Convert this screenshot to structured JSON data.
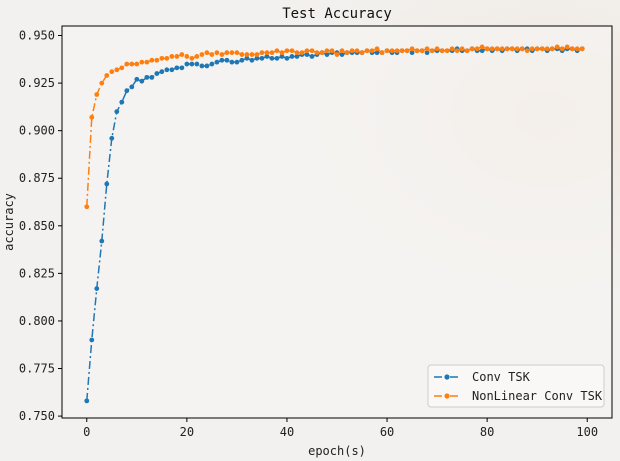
{
  "chart_data": {
    "type": "line",
    "title": "Test Accuracy",
    "xlabel": "epoch(s)",
    "ylabel": "accuracy",
    "xlim": [
      -4.95,
      104.95
    ],
    "ylim": [
      0.749,
      0.955
    ],
    "xticks": [
      0,
      20,
      40,
      60,
      80,
      100
    ],
    "yticks": [
      0.75,
      0.775,
      0.8,
      0.825,
      0.85,
      0.875,
      0.9,
      0.925,
      0.95
    ],
    "ytick_labels": [
      "0.750",
      "0.775",
      "0.800",
      "0.825",
      "0.850",
      "0.875",
      "0.900",
      "0.925",
      "0.950"
    ],
    "grid": false,
    "legend_position": "lower-right",
    "x": [
      0,
      1,
      2,
      3,
      4,
      5,
      6,
      7,
      8,
      9,
      10,
      11,
      12,
      13,
      14,
      15,
      16,
      17,
      18,
      19,
      20,
      21,
      22,
      23,
      24,
      25,
      26,
      27,
      28,
      29,
      30,
      31,
      32,
      33,
      34,
      35,
      36,
      37,
      38,
      39,
      40,
      41,
      42,
      43,
      44,
      45,
      46,
      47,
      48,
      49,
      50,
      51,
      52,
      53,
      54,
      55,
      56,
      57,
      58,
      59,
      60,
      61,
      62,
      63,
      64,
      65,
      66,
      67,
      68,
      69,
      70,
      71,
      72,
      73,
      74,
      75,
      76,
      77,
      78,
      79,
      80,
      81,
      82,
      83,
      84,
      85,
      86,
      87,
      88,
      89,
      90,
      91,
      92,
      93,
      94,
      95,
      96,
      97,
      98,
      99
    ],
    "series": [
      {
        "name": "Conv TSK",
        "color": "#1f77b4",
        "values": [
          0.758,
          0.79,
          0.817,
          0.842,
          0.872,
          0.896,
          0.91,
          0.915,
          0.921,
          0.923,
          0.927,
          0.926,
          0.928,
          0.928,
          0.93,
          0.931,
          0.932,
          0.932,
          0.933,
          0.933,
          0.935,
          0.935,
          0.935,
          0.934,
          0.934,
          0.935,
          0.936,
          0.937,
          0.937,
          0.936,
          0.936,
          0.937,
          0.938,
          0.937,
          0.938,
          0.938,
          0.939,
          0.938,
          0.938,
          0.939,
          0.938,
          0.939,
          0.939,
          0.94,
          0.94,
          0.939,
          0.94,
          0.941,
          0.94,
          0.941,
          0.941,
          0.94,
          0.941,
          0.941,
          0.941,
          0.941,
          0.942,
          0.941,
          0.941,
          0.941,
          0.942,
          0.941,
          0.941,
          0.942,
          0.942,
          0.941,
          0.942,
          0.942,
          0.941,
          0.942,
          0.942,
          0.942,
          0.942,
          0.942,
          0.943,
          0.942,
          0.942,
          0.943,
          0.942,
          0.942,
          0.943,
          0.942,
          0.943,
          0.942,
          0.943,
          0.943,
          0.942,
          0.943,
          0.943,
          0.942,
          0.943,
          0.943,
          0.942,
          0.943,
          0.943,
          0.942,
          0.943,
          0.943,
          0.942,
          0.943
        ]
      },
      {
        "name": "NonLinear Conv TSK",
        "color": "#ff7f0e",
        "values": [
          0.86,
          0.907,
          0.919,
          0.925,
          0.929,
          0.931,
          0.932,
          0.933,
          0.935,
          0.935,
          0.935,
          0.936,
          0.936,
          0.937,
          0.937,
          0.938,
          0.938,
          0.939,
          0.939,
          0.94,
          0.939,
          0.938,
          0.939,
          0.94,
          0.941,
          0.94,
          0.941,
          0.94,
          0.941,
          0.941,
          0.941,
          0.94,
          0.94,
          0.94,
          0.94,
          0.941,
          0.941,
          0.941,
          0.942,
          0.941,
          0.942,
          0.942,
          0.941,
          0.941,
          0.942,
          0.942,
          0.941,
          0.941,
          0.942,
          0.942,
          0.94,
          0.942,
          0.941,
          0.942,
          0.942,
          0.941,
          0.942,
          0.942,
          0.943,
          0.941,
          0.942,
          0.942,
          0.942,
          0.942,
          0.942,
          0.943,
          0.942,
          0.942,
          0.943,
          0.942,
          0.943,
          0.942,
          0.942,
          0.943,
          0.942,
          0.943,
          0.942,
          0.943,
          0.943,
          0.944,
          0.943,
          0.943,
          0.943,
          0.943,
          0.943,
          0.943,
          0.943,
          0.943,
          0.942,
          0.943,
          0.943,
          0.943,
          0.943,
          0.943,
          0.944,
          0.943,
          0.944,
          0.943,
          0.943,
          0.943
        ]
      }
    ]
  }
}
